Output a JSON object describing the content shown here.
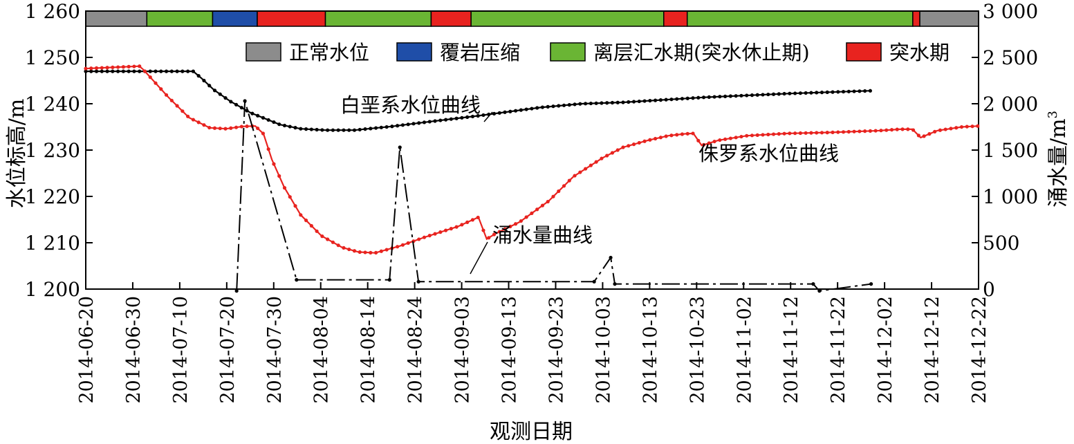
{
  "chart_data": {
    "type": "line",
    "xlabel": "观测日期",
    "ylabel_left": "水位标高/m",
    "ylabel_right": "涌水量/m",
    "ylabel_right_sup": "3",
    "x_ticks": [
      "2014-06-20",
      "2014-06-30",
      "2014-07-10",
      "2014-07-20",
      "2014-07-30",
      "2014-08-04",
      "2014-08-14",
      "2014-08-24",
      "2014-09-03",
      "2014-09-13",
      "2014-09-23",
      "2014-10-03",
      "2014-10-13",
      "2014-10-23",
      "2014-11-02",
      "2014-11-12",
      "2014-11-22",
      "2014-12-02",
      "2014-12-12",
      "2014-12-22"
    ],
    "y_left_ticks": [
      "1 200",
      "1 210",
      "1 220",
      "1 230",
      "1 240",
      "1 250",
      "1 260"
    ],
    "y_left_range": [
      1200,
      1260
    ],
    "y_right_ticks": [
      "0",
      "500",
      "1 000",
      "1 500",
      "2 000",
      "2 500",
      "3 000"
    ],
    "y_right_range": [
      0,
      3000
    ],
    "legend": [
      {
        "label": "正常水位",
        "color": "#8c8c8c"
      },
      {
        "label": "覆岩压缩",
        "color": "#1f4ea8"
      },
      {
        "label": "离层汇水期(突水休止期)",
        "color": "#6ab534"
      },
      {
        "label": "突水期",
        "color": "#e8231f"
      }
    ],
    "phase_bar": [
      {
        "from": 0,
        "to": 13,
        "phase": "正常水位"
      },
      {
        "from": 13,
        "to": 27,
        "phase": "离层汇水期(突水休止期)"
      },
      {
        "from": 27,
        "to": 36.5,
        "phase": "覆岩压缩"
      },
      {
        "from": 36.5,
        "to": 51,
        "phase": "突水期"
      },
      {
        "from": 51,
        "to": 73.5,
        "phase": "离层汇水期(突水休止期)"
      },
      {
        "from": 73.5,
        "to": 82,
        "phase": "突水期"
      },
      {
        "from": 82,
        "to": 123,
        "phase": "离层汇水期(突水休止期)"
      },
      {
        "from": 123,
        "to": 128,
        "phase": "突水期"
      },
      {
        "from": 128,
        "to": 176,
        "phase": "离层汇水期(突水休止期)"
      },
      {
        "from": 176,
        "to": 177.5,
        "phase": "突水期"
      },
      {
        "from": 177.5,
        "to": 190,
        "phase": "正常水位"
      }
    ],
    "series": [
      {
        "name": "白垩系水位曲线",
        "axis": "left",
        "color": "#000000",
        "points": [
          [
            0,
            1247
          ],
          [
            26,
            1247
          ],
          [
            28,
            1245.5
          ],
          [
            31,
            1243
          ],
          [
            35,
            1240.5
          ],
          [
            40,
            1238
          ],
          [
            47,
            1235.5
          ],
          [
            52,
            1234.6
          ],
          [
            58,
            1234.3
          ],
          [
            65,
            1234.3
          ],
          [
            74,
            1235.1
          ],
          [
            82,
            1236
          ],
          [
            95,
            1237.4
          ],
          [
            110,
            1239.2
          ],
          [
            120,
            1240
          ],
          [
            130,
            1240.3
          ],
          [
            150,
            1241.4
          ],
          [
            170,
            1242.2
          ],
          [
            190,
            1242.8
          ]
        ]
      },
      {
        "name": "侏罗系水位曲线",
        "axis": "left",
        "color": "#e8231f",
        "points": [
          [
            0,
            1247.6
          ],
          [
            13,
            1248.1
          ],
          [
            14,
            1247.3
          ],
          [
            20,
            1241.4
          ],
          [
            25,
            1237
          ],
          [
            30,
            1234.8
          ],
          [
            34,
            1234.6
          ],
          [
            38,
            1235.1
          ],
          [
            41,
            1235.2
          ],
          [
            43,
            1233.5
          ],
          [
            45,
            1228
          ],
          [
            48,
            1222
          ],
          [
            52,
            1216
          ],
          [
            57,
            1211.5
          ],
          [
            62,
            1209
          ],
          [
            66,
            1208
          ],
          [
            70,
            1207.8
          ],
          [
            76,
            1209.3
          ],
          [
            82,
            1211.2
          ],
          [
            90,
            1213.5
          ],
          [
            95,
            1215.5
          ],
          [
            76.3,
            1211
          ],
          [
            97,
            1210.8
          ],
          [
            99,
            1211.9
          ],
          [
            105,
            1214.5
          ],
          [
            112,
            1219
          ],
          [
            118,
            1224.3
          ],
          [
            125,
            1228.3
          ],
          [
            130,
            1230.6
          ],
          [
            136,
            1232.1
          ],
          [
            141,
            1233.1
          ],
          [
            145,
            1233.5
          ],
          [
            147,
            1233.6
          ],
          [
            149,
            1231
          ],
          [
            153,
            1232.1
          ],
          [
            160,
            1233.1
          ],
          [
            170,
            1233.6
          ],
          [
            180,
            1233.8
          ],
          [
            192,
            1234.2
          ],
          [
            197,
            1234.5
          ],
          [
            200,
            1234.5
          ],
          [
            202,
            1232.7
          ],
          [
            206,
            1234.2
          ],
          [
            212,
            1235
          ],
          [
            216,
            1235.2
          ]
        ]
      },
      {
        "name": "涌水量曲线",
        "axis": "right",
        "color": "#000000",
        "points": [
          [
            36.5,
            -20
          ],
          [
            38.5,
            2030
          ],
          [
            51,
            100
          ],
          [
            73.5,
            100
          ],
          [
            76,
            1530
          ],
          [
            80.5,
            80
          ],
          [
            123,
            80
          ],
          [
            127,
            340
          ],
          [
            128,
            55
          ],
          [
            176,
            55
          ],
          [
            177.5,
            -20
          ],
          [
            190,
            55
          ]
        ]
      }
    ],
    "annotations": [
      {
        "text": "白垩系水位曲线",
        "series": "白垩系水位曲线"
      },
      {
        "text": "侏罗系水位曲线",
        "series": "侏罗系水位曲线"
      },
      {
        "text": "涌水量曲线",
        "series": "涌水量曲线"
      }
    ]
  }
}
